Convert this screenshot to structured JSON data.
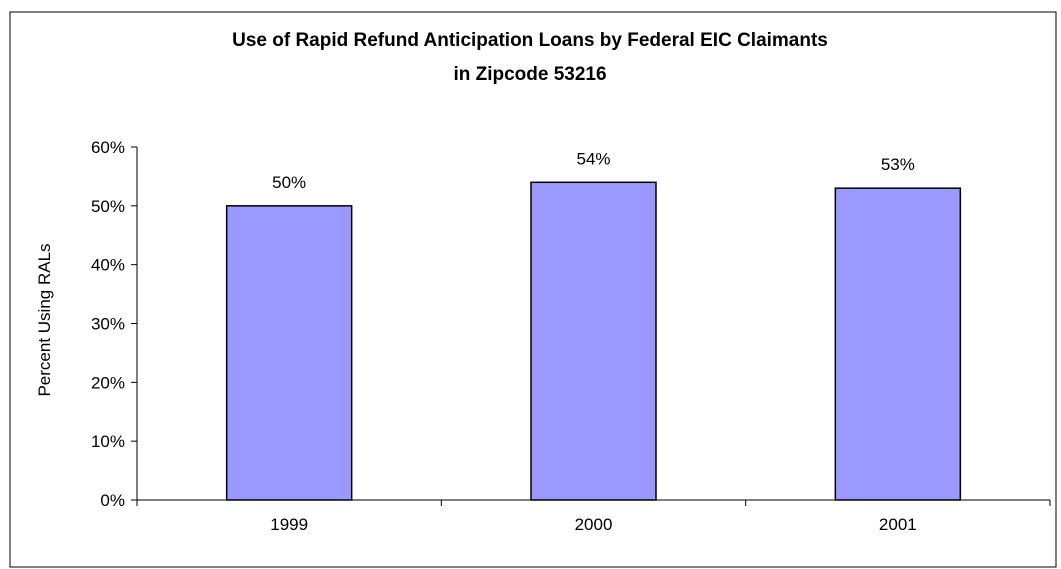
{
  "chart_data": {
    "type": "bar",
    "title": "Use of Rapid Refund Anticipation Loans by Federal EIC Claimants",
    "subtitle": "in Zipcode 53216",
    "xlabel": "",
    "ylabel": "Percent Using RALs",
    "categories": [
      "1999",
      "2000",
      "2001"
    ],
    "values": [
      50,
      54,
      53
    ],
    "value_labels": [
      "50%",
      "54%",
      "53%"
    ],
    "y_ticks": [
      "0%",
      "10%",
      "20%",
      "30%",
      "40%",
      "50%",
      "60%"
    ],
    "ylim": [
      0,
      60
    ],
    "grid": false,
    "legend": false,
    "colors": {
      "bar_fill": "#9999ff",
      "bar_stroke": "#000000",
      "axis": "#000000",
      "frame": "#000000",
      "background": "#ffffff"
    }
  }
}
